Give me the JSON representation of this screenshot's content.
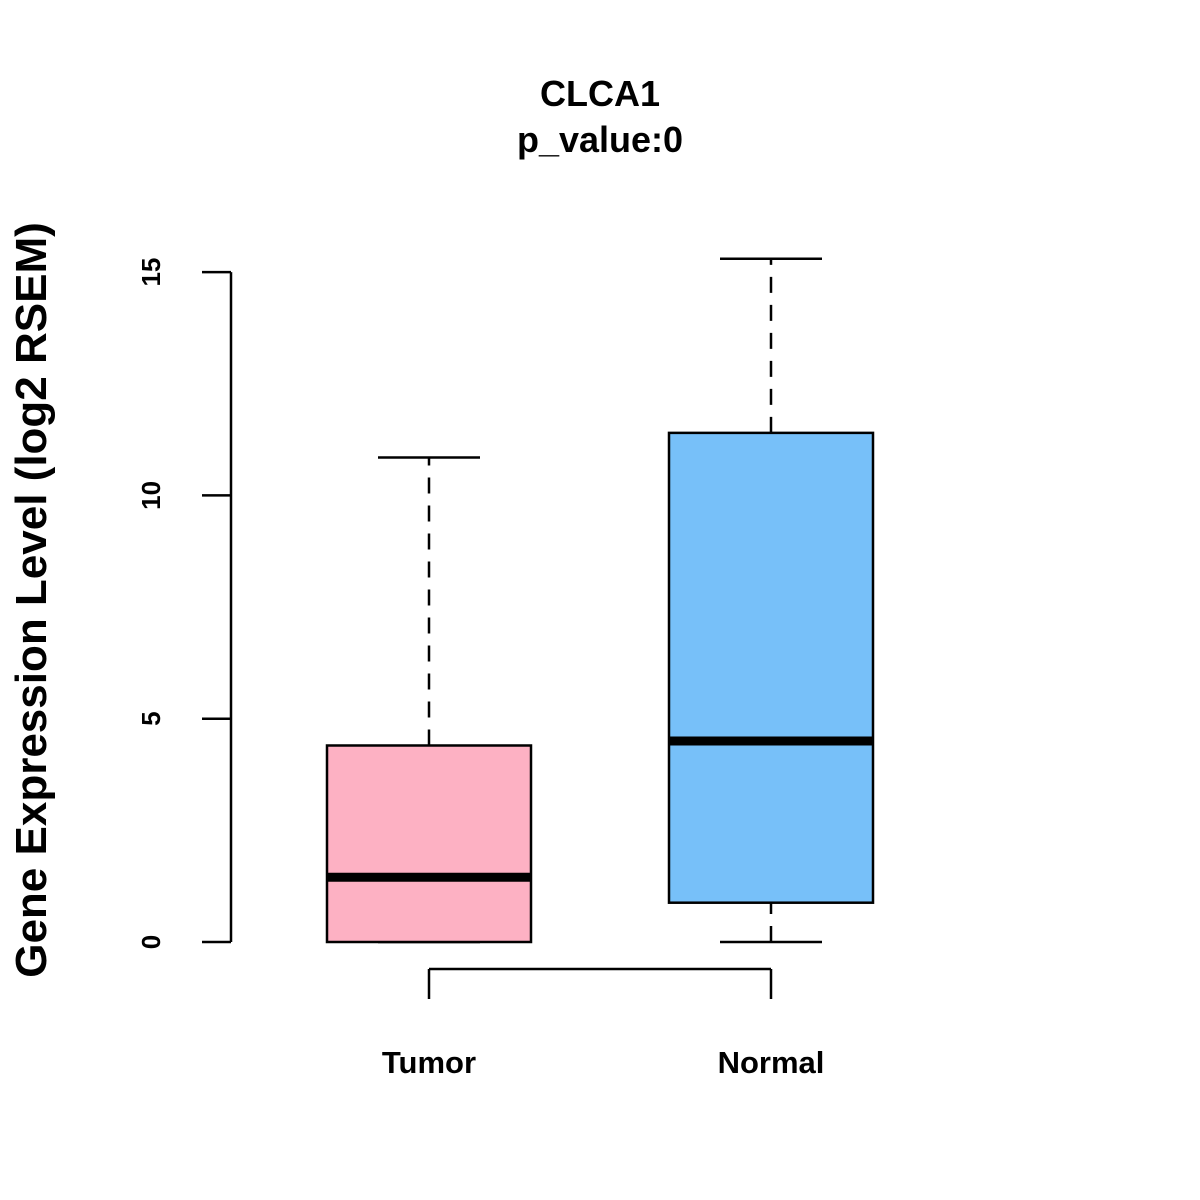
{
  "chart_data": {
    "type": "box",
    "title": "CLCA1",
    "subtitle": "p_value:0",
    "xlabel": "",
    "ylabel": "Gene Expression Level (log2 RSEM)",
    "ylim": [
      0,
      15.3
    ],
    "yticks": [
      0,
      5,
      10,
      15
    ],
    "categories": [
      "Tumor",
      "Normal"
    ],
    "series": [
      {
        "name": "Tumor",
        "min": 0,
        "q1": 0,
        "median": 1.45,
        "q3": 4.4,
        "max": 10.85,
        "color": "#FDB1C3"
      },
      {
        "name": "Normal",
        "min": 0,
        "q1": 0.88,
        "median": 4.5,
        "q3": 11.4,
        "max": 15.3,
        "color": "#77C0F9"
      }
    ],
    "comparison_bracket": [
      "Tumor",
      "Normal"
    ],
    "grid": false
  }
}
